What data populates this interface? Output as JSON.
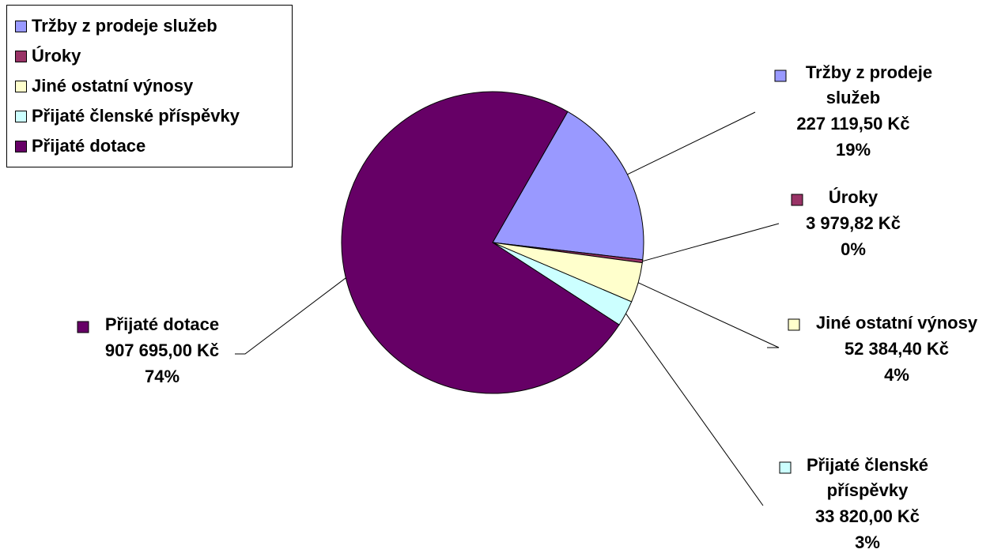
{
  "chart_data": {
    "type": "pie",
    "series": [
      {
        "name": "Tržby z prodeje služeb",
        "label_lines": [
          "Tržby z prodeje",
          "služeb"
        ],
        "value": 227119.5,
        "value_label": "227 119,50 Kč",
        "percent_label": "19%",
        "color": "#9999ff"
      },
      {
        "name": "Úroky",
        "label_lines": [
          "Úroky"
        ],
        "value": 3979.82,
        "value_label": "3 979,82 Kč",
        "percent_label": "0%",
        "color": "#993366"
      },
      {
        "name": "Jiné ostatní výnosy",
        "label_lines": [
          "Jiné ostatní výnosy"
        ],
        "value": 52384.4,
        "value_label": "52 384,40 Kč",
        "percent_label": "4%",
        "color": "#ffffcc"
      },
      {
        "name": "Přijaté členské příspěvky",
        "label_lines": [
          "Přijaté členské",
          "příspěvky"
        ],
        "value": 33820.0,
        "value_label": "33 820,00 Kč",
        "percent_label": "3%",
        "color": "#ccffff"
      },
      {
        "name": "Přijaté dotace",
        "label_lines": [
          "Přijaté dotace"
        ],
        "value": 907695.0,
        "value_label": "907 695,00 Kč",
        "percent_label": "74%",
        "color": "#660066"
      }
    ],
    "legend_position": "top-left"
  }
}
